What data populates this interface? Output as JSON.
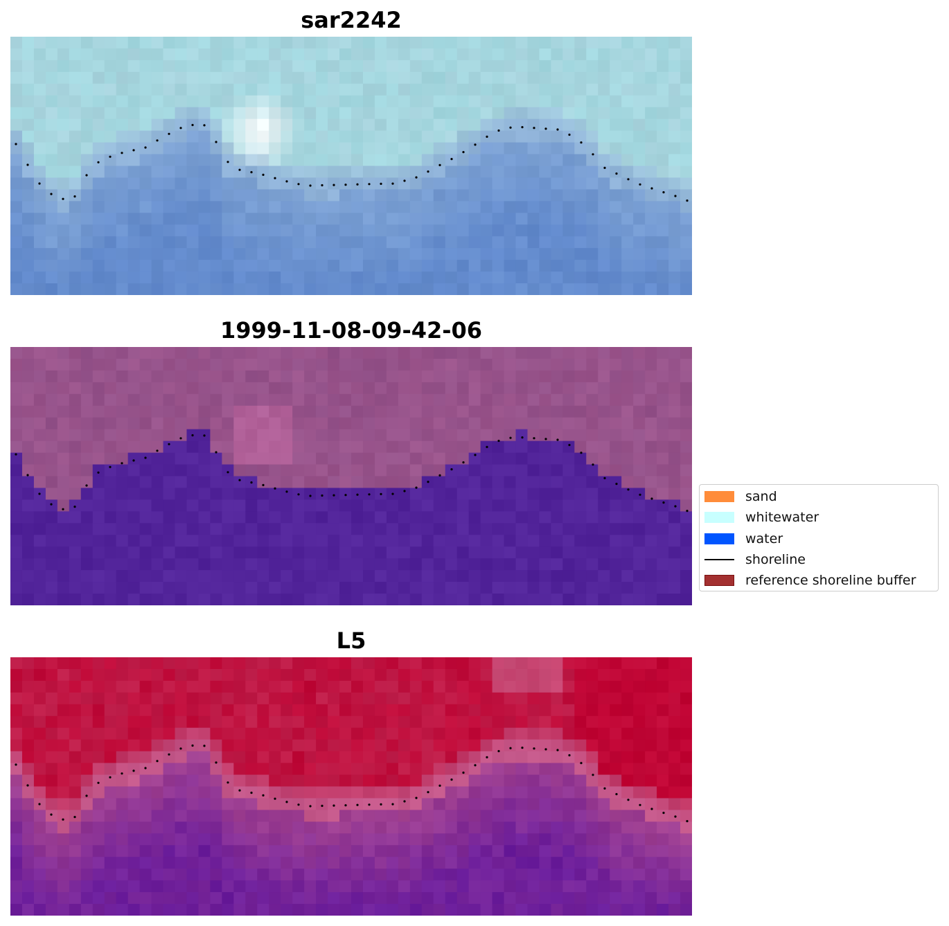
{
  "panels": [
    {
      "title": "sar2242",
      "colors": {
        "top": "#a9d4de",
        "highlight": "#ffffff",
        "band": "#8fb2d8",
        "bottom": "#6088cc",
        "accent": "#9fd9df"
      }
    },
    {
      "title": "1999-11-08-09-42-06",
      "colors": {
        "top": "#93528a",
        "highlight": "#c26aa2",
        "band": "#9a5190",
        "bottom": "#52249a",
        "accent": "#a0568c"
      }
    },
    {
      "title": "L5",
      "colors": {
        "top": "#bf1f4b",
        "highlight": "#cc6a94",
        "band": "#c4588a",
        "bottom": "#6a1d9c",
        "accent": "#c00030"
      }
    }
  ],
  "legend": {
    "items": [
      {
        "label": "sand",
        "kind": "patch",
        "color": "#ff8c3a",
        "edge": "#ff8c3a"
      },
      {
        "label": "whitewater",
        "kind": "patch",
        "color": "#c8ffff",
        "edge": "#c8ffff"
      },
      {
        "label": "water",
        "kind": "patch",
        "color": "#0055ff",
        "edge": "#0055ff"
      },
      {
        "label": "shoreline",
        "kind": "line",
        "color": "#000000",
        "edge": "#000000"
      },
      {
        "label": "reference shoreline buffer",
        "kind": "patch",
        "color": "#a33030",
        "edge": "#7a1010"
      }
    ]
  }
}
